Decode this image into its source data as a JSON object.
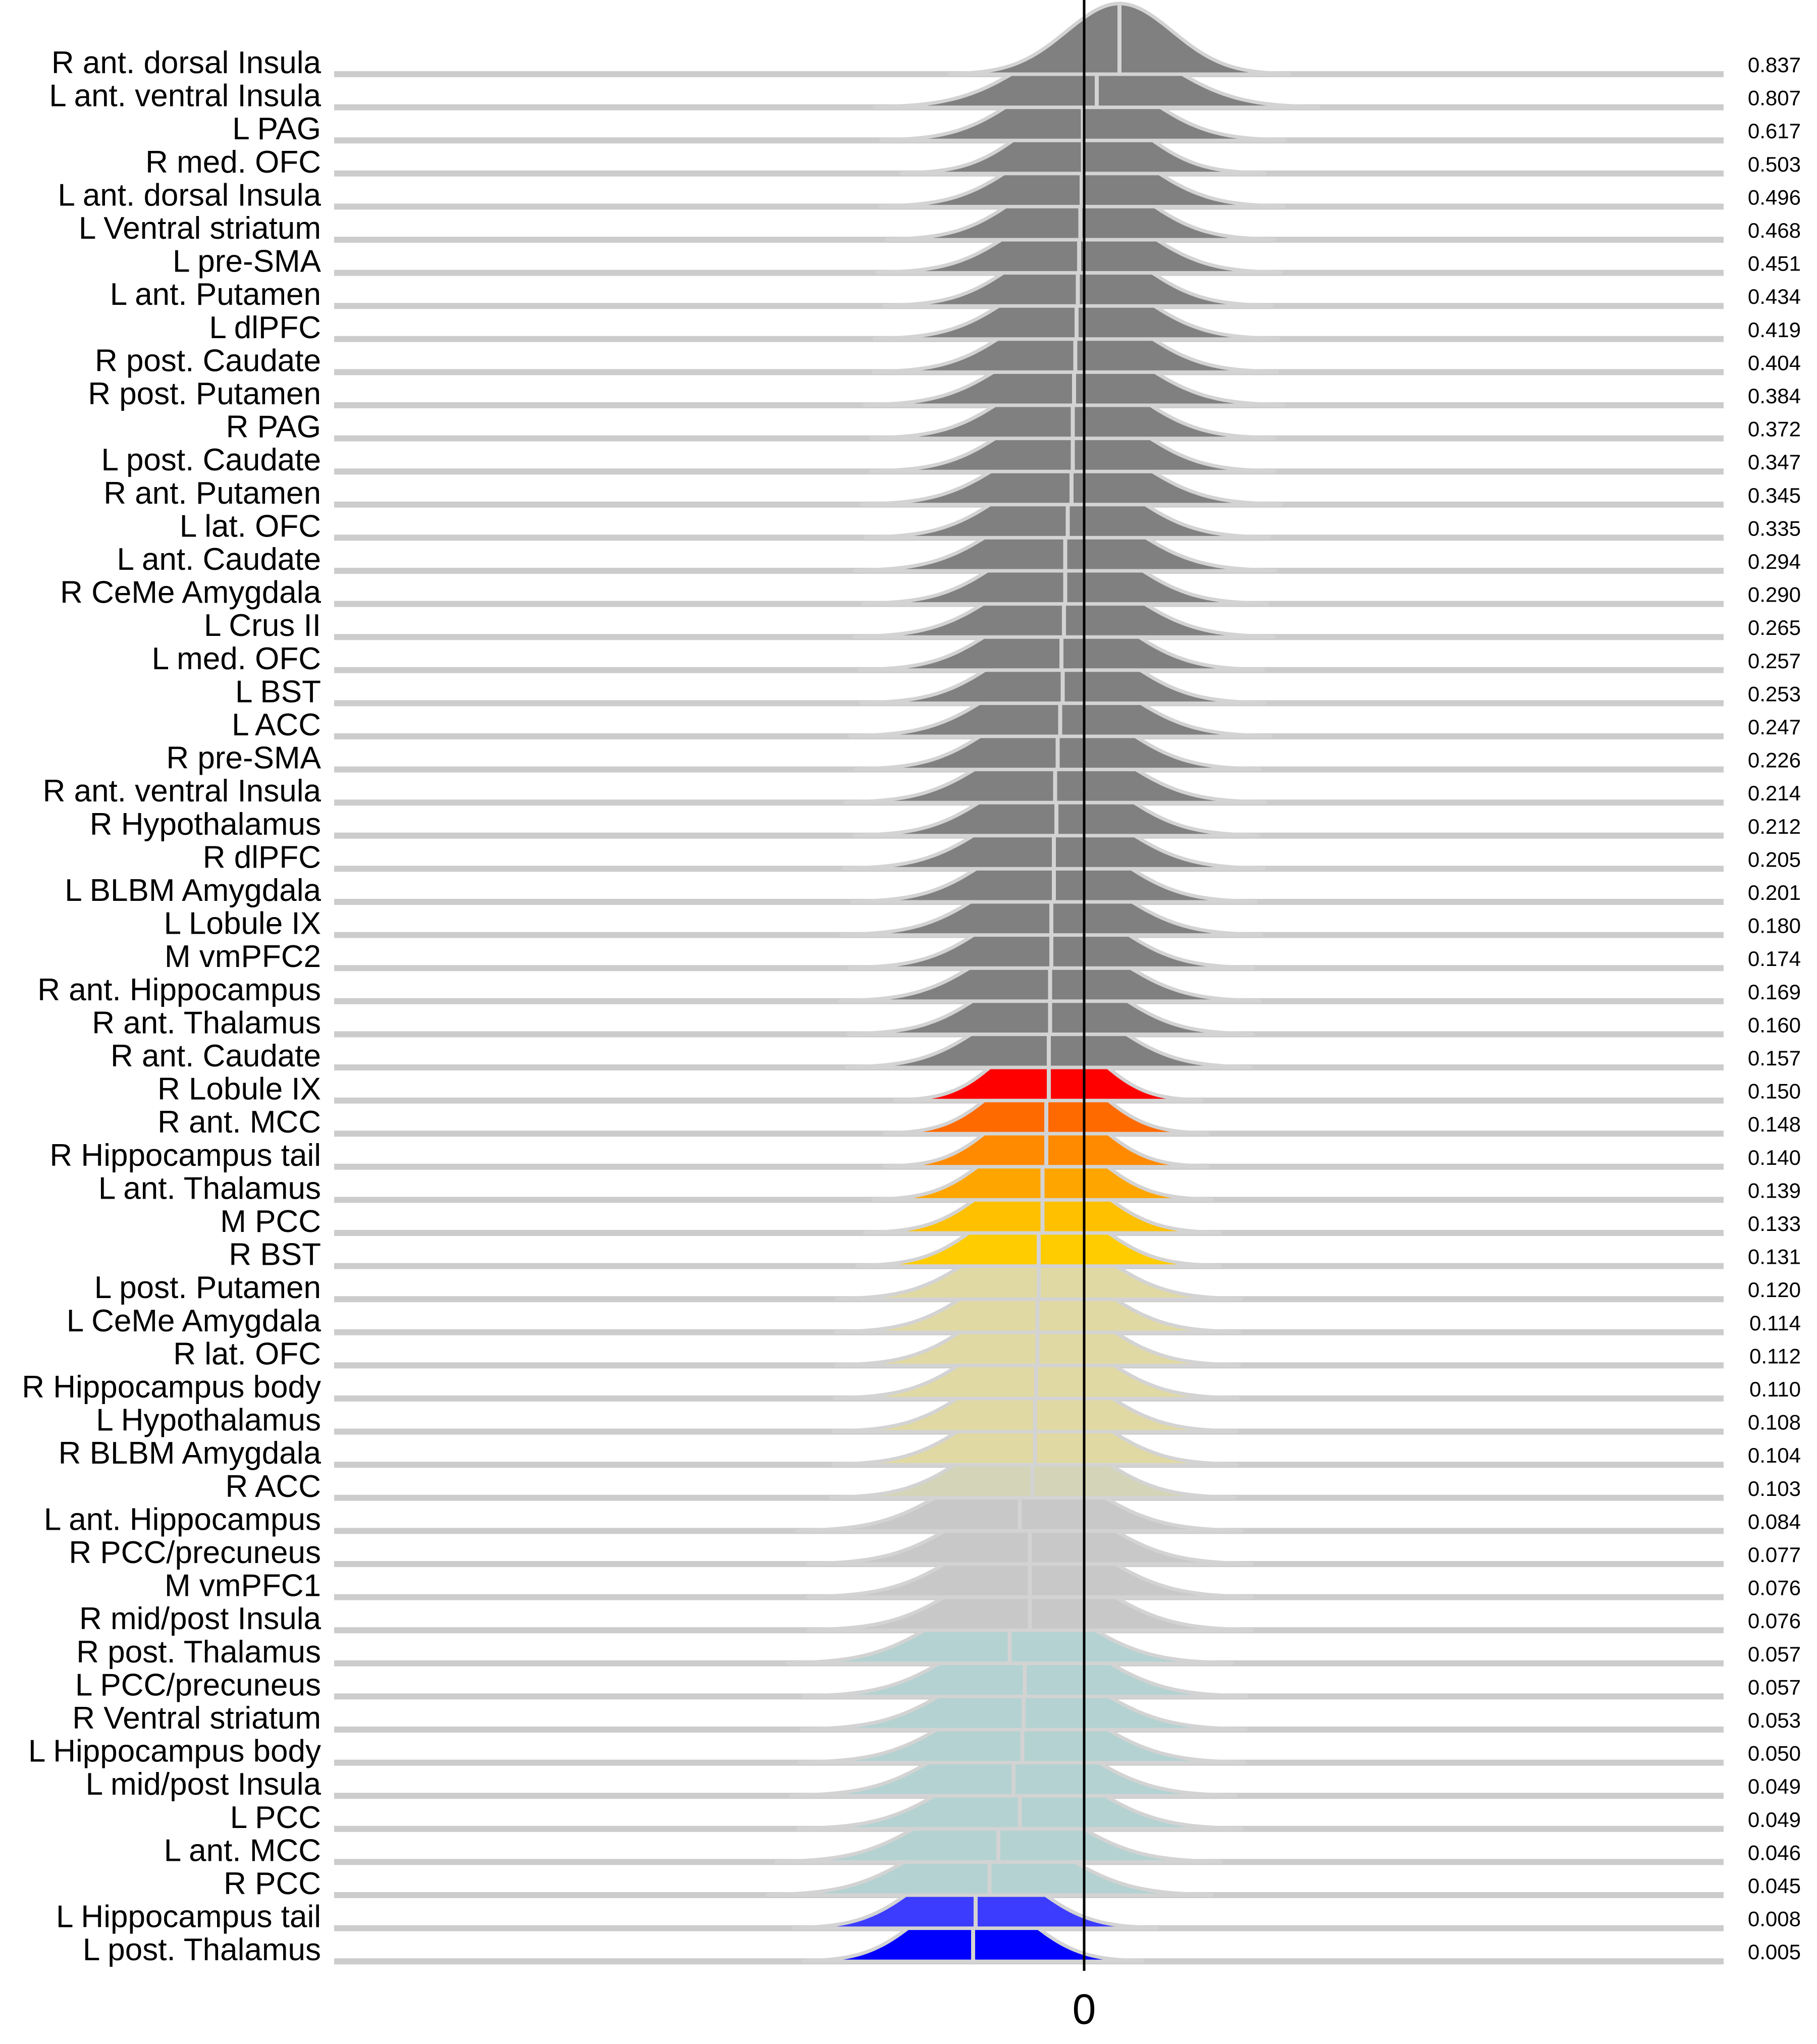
{
  "chart_data": {
    "type": "ridgeline",
    "x_tick_label": "0",
    "ridge_outline_color": "#d3d3d3",
    "baseline_color": "#cccccc",
    "zero_line_color": "#000000",
    "rows": [
      {
        "region": "R ant. dorsal Insula",
        "value": "0.837",
        "mean": 0.28,
        "sd": 0.42,
        "color": "#808080"
      },
      {
        "region": "L ant. ventral Insula",
        "value": "0.807",
        "mean": 0.1,
        "sd": 0.55,
        "color": "#808080"
      },
      {
        "region": "L PAG",
        "value": "0.617",
        "mean": -0.01,
        "sd": 0.5,
        "color": "#808080"
      },
      {
        "region": "R med. OFC",
        "value": "0.503",
        "mean": -0.01,
        "sd": 0.45,
        "color": "#808080"
      },
      {
        "region": "L ant. dorsal Insula",
        "value": "0.496",
        "mean": -0.02,
        "sd": 0.5,
        "color": "#808080"
      },
      {
        "region": "L Ventral striatum",
        "value": "0.468",
        "mean": -0.03,
        "sd": 0.48,
        "color": "#808080"
      },
      {
        "region": "L pre-SMA",
        "value": "0.451",
        "mean": -0.04,
        "sd": 0.5,
        "color": "#808080"
      },
      {
        "region": "L ant. Putamen",
        "value": "0.434",
        "mean": -0.05,
        "sd": 0.48,
        "color": "#808080"
      },
      {
        "region": "L dlPFC",
        "value": "0.419",
        "mean": -0.06,
        "sd": 0.5,
        "color": "#808080"
      },
      {
        "region": "R post. Caudate",
        "value": "0.404",
        "mean": -0.07,
        "sd": 0.5,
        "color": "#808080"
      },
      {
        "region": "R post. Putamen",
        "value": "0.384",
        "mean": -0.08,
        "sd": 0.52,
        "color": "#808080"
      },
      {
        "region": "R PAG",
        "value": "0.372",
        "mean": -0.09,
        "sd": 0.5,
        "color": "#808080"
      },
      {
        "region": "L post. Caudate",
        "value": "0.347",
        "mean": -0.09,
        "sd": 0.5,
        "color": "#808080"
      },
      {
        "region": "R ant. Putamen",
        "value": "0.345",
        "mean": -0.1,
        "sd": 0.52,
        "color": "#808080"
      },
      {
        "region": "L lat. OFC",
        "value": "0.335",
        "mean": -0.13,
        "sd": 0.5,
        "color": "#808080"
      },
      {
        "region": "L ant. Caudate",
        "value": "0.294",
        "mean": -0.15,
        "sd": 0.52,
        "color": "#808080"
      },
      {
        "region": "R CeMe Amygdala",
        "value": "0.290",
        "mean": -0.15,
        "sd": 0.5,
        "color": "#808080"
      },
      {
        "region": "L Crus II",
        "value": "0.265",
        "mean": -0.16,
        "sd": 0.52,
        "color": "#808080"
      },
      {
        "region": "L med. OFC",
        "value": "0.257",
        "mean": -0.18,
        "sd": 0.5,
        "color": "#808080"
      },
      {
        "region": "L BST",
        "value": "0.253",
        "mean": -0.17,
        "sd": 0.5,
        "color": "#808080"
      },
      {
        "region": "L ACC",
        "value": "0.247",
        "mean": -0.19,
        "sd": 0.52,
        "color": "#808080"
      },
      {
        "region": "R pre-SMA",
        "value": "0.226",
        "mean": -0.21,
        "sd": 0.5,
        "color": "#808080"
      },
      {
        "region": "R ant. ventral Insula",
        "value": "0.214",
        "mean": -0.23,
        "sd": 0.52,
        "color": "#808080"
      },
      {
        "region": "R Hypothalamus",
        "value": "0.212",
        "mean": -0.22,
        "sd": 0.5,
        "color": "#808080"
      },
      {
        "region": "R dlPFC",
        "value": "0.205",
        "mean": -0.24,
        "sd": 0.52,
        "color": "#808080"
      },
      {
        "region": "L BLBM Amygdala",
        "value": "0.201",
        "mean": -0.24,
        "sd": 0.5,
        "color": "#808080"
      },
      {
        "region": "L Lobule IX",
        "value": "0.180",
        "mean": -0.26,
        "sd": 0.52,
        "color": "#808080"
      },
      {
        "region": "M vmPFC2",
        "value": "0.174",
        "mean": -0.26,
        "sd": 0.5,
        "color": "#808080"
      },
      {
        "region": "R ant. Hippocampus",
        "value": "0.169",
        "mean": -0.27,
        "sd": 0.52,
        "color": "#808080"
      },
      {
        "region": "R ant. Thalamus",
        "value": "0.160",
        "mean": -0.27,
        "sd": 0.5,
        "color": "#808080"
      },
      {
        "region": "R ant. Caudate",
        "value": "0.157",
        "mean": -0.28,
        "sd": 0.5,
        "color": "#808080"
      },
      {
        "region": "R Lobule IX",
        "value": "0.150",
        "mean": -0.28,
        "sd": 0.38,
        "color": "#ff0000"
      },
      {
        "region": "R ant. MCC",
        "value": "0.148",
        "mean": -0.3,
        "sd": 0.4,
        "color": "#ff6a00"
      },
      {
        "region": "R Hippocampus tail",
        "value": "0.140",
        "mean": -0.3,
        "sd": 0.4,
        "color": "#ff8a00"
      },
      {
        "region": "L ant. Thalamus",
        "value": "0.139",
        "mean": -0.33,
        "sd": 0.42,
        "color": "#ffa500"
      },
      {
        "region": "M PCC",
        "value": "0.133",
        "mean": -0.33,
        "sd": 0.44,
        "color": "#ffc000"
      },
      {
        "region": "R BST",
        "value": "0.131",
        "mean": -0.36,
        "sd": 0.45,
        "color": "#ffcc00"
      },
      {
        "region": "L post. Putamen",
        "value": "0.120",
        "mean": -0.36,
        "sd": 0.5,
        "color": "#e1d9a3"
      },
      {
        "region": "L CeMe Amygdala",
        "value": "0.114",
        "mean": -0.37,
        "sd": 0.5,
        "color": "#e1d9a3"
      },
      {
        "region": "R lat. OFC",
        "value": "0.112",
        "mean": -0.37,
        "sd": 0.5,
        "color": "#e1d9a3"
      },
      {
        "region": "R Hippocampus body",
        "value": "0.110",
        "mean": -0.38,
        "sd": 0.5,
        "color": "#e1d9a3"
      },
      {
        "region": "L Hypothalamus",
        "value": "0.108",
        "mean": -0.39,
        "sd": 0.5,
        "color": "#e1d9a3"
      },
      {
        "region": "R BLBM Amygdala",
        "value": "0.104",
        "mean": -0.39,
        "sd": 0.5,
        "color": "#e1d9a3"
      },
      {
        "region": "R ACC",
        "value": "0.103",
        "mean": -0.41,
        "sd": 0.5,
        "color": "#d4d4b8"
      },
      {
        "region": "L ant. Hippocampus",
        "value": "0.084",
        "mean": -0.51,
        "sd": 0.55,
        "color": "#c8c8c8"
      },
      {
        "region": "R PCC/precuneus",
        "value": "0.077",
        "mean": -0.43,
        "sd": 0.55,
        "color": "#c8c8c8"
      },
      {
        "region": "M vmPFC1",
        "value": "0.076",
        "mean": -0.43,
        "sd": 0.55,
        "color": "#c8c8c8"
      },
      {
        "region": "R mid/post Insula",
        "value": "0.076",
        "mean": -0.43,
        "sd": 0.55,
        "color": "#c8c8c8"
      },
      {
        "region": "R post. Thalamus",
        "value": "0.057",
        "mean": -0.59,
        "sd": 0.55,
        "color": "#b4d2d2"
      },
      {
        "region": "L PCC/precuneus",
        "value": "0.057",
        "mean": -0.47,
        "sd": 0.55,
        "color": "#b4d2d2"
      },
      {
        "region": "R Ventral striatum",
        "value": "0.053",
        "mean": -0.48,
        "sd": 0.55,
        "color": "#b4d2d2"
      },
      {
        "region": "L Hippocampus body",
        "value": "0.050",
        "mean": -0.49,
        "sd": 0.55,
        "color": "#b4d2d2"
      },
      {
        "region": "L mid/post Insula",
        "value": "0.049",
        "mean": -0.56,
        "sd": 0.55,
        "color": "#b4d2d2"
      },
      {
        "region": "L PCC",
        "value": "0.049",
        "mean": -0.51,
        "sd": 0.55,
        "color": "#b4d2d2"
      },
      {
        "region": "L ant. MCC",
        "value": "0.046",
        "mean": -0.68,
        "sd": 0.55,
        "color": "#b4d2d2"
      },
      {
        "region": "R PCC",
        "value": "0.045",
        "mean": -0.75,
        "sd": 0.55,
        "color": "#b4d2d2"
      },
      {
        "region": "L Hippocampus tail",
        "value": "0.008",
        "mean": -0.86,
        "sd": 0.45,
        "color": "#3c3cff"
      },
      {
        "region": "L post. Thalamus",
        "value": "0.005",
        "mean": -0.88,
        "sd": 0.42,
        "color": "#0000ff"
      }
    ]
  }
}
